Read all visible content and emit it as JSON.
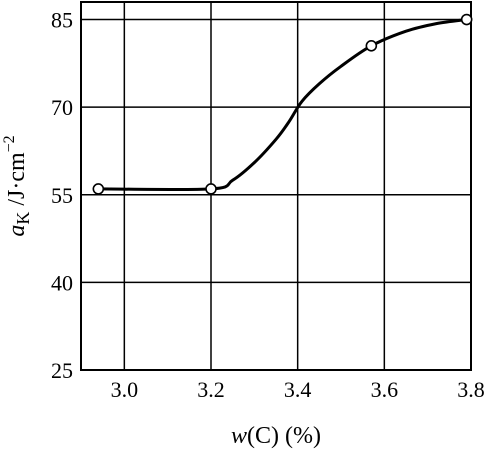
{
  "chart_data": {
    "type": "line",
    "xlabel": "w(C) (%)",
    "ylabel": "aK /J·cm⁻²",
    "xlabel_parts": {
      "var": "w",
      "rest": "(C) (%)"
    },
    "ylabel_parts": {
      "var": "a",
      "sub": "K",
      "rest": " /J·cm",
      "sup": "−2"
    },
    "xlim": [
      2.9,
      3.8
    ],
    "ylim": [
      25,
      88
    ],
    "x_ticks": [
      3.0,
      3.2,
      3.4,
      3.6,
      3.8
    ],
    "x_tick_labels": [
      "3.0",
      "3.2",
      "3.4",
      "3.6",
      "3.8"
    ],
    "y_ticks": [
      25,
      40,
      55,
      70,
      85
    ],
    "y_tick_labels": [
      "25",
      "40",
      "55",
      "70",
      "85"
    ],
    "grid": true,
    "series": [
      {
        "x": [
          2.94,
          3.2,
          3.57,
          3.79
        ],
        "y": [
          56,
          56,
          80.5,
          85
        ],
        "markers": "open-circle"
      }
    ],
    "curve_path": [
      [
        2.94,
        56
      ],
      [
        3.2,
        56
      ],
      [
        3.25,
        57.5
      ],
      [
        3.3,
        60.5
      ],
      [
        3.35,
        64.5
      ],
      [
        3.38,
        67.5
      ],
      [
        3.41,
        71
      ],
      [
        3.45,
        74
      ],
      [
        3.5,
        77
      ],
      [
        3.57,
        80.5
      ],
      [
        3.65,
        83
      ],
      [
        3.72,
        84.3
      ],
      [
        3.79,
        85
      ]
    ],
    "colors": {
      "line": "#000000",
      "grid": "#000000",
      "marker_fill": "#ffffff"
    }
  }
}
